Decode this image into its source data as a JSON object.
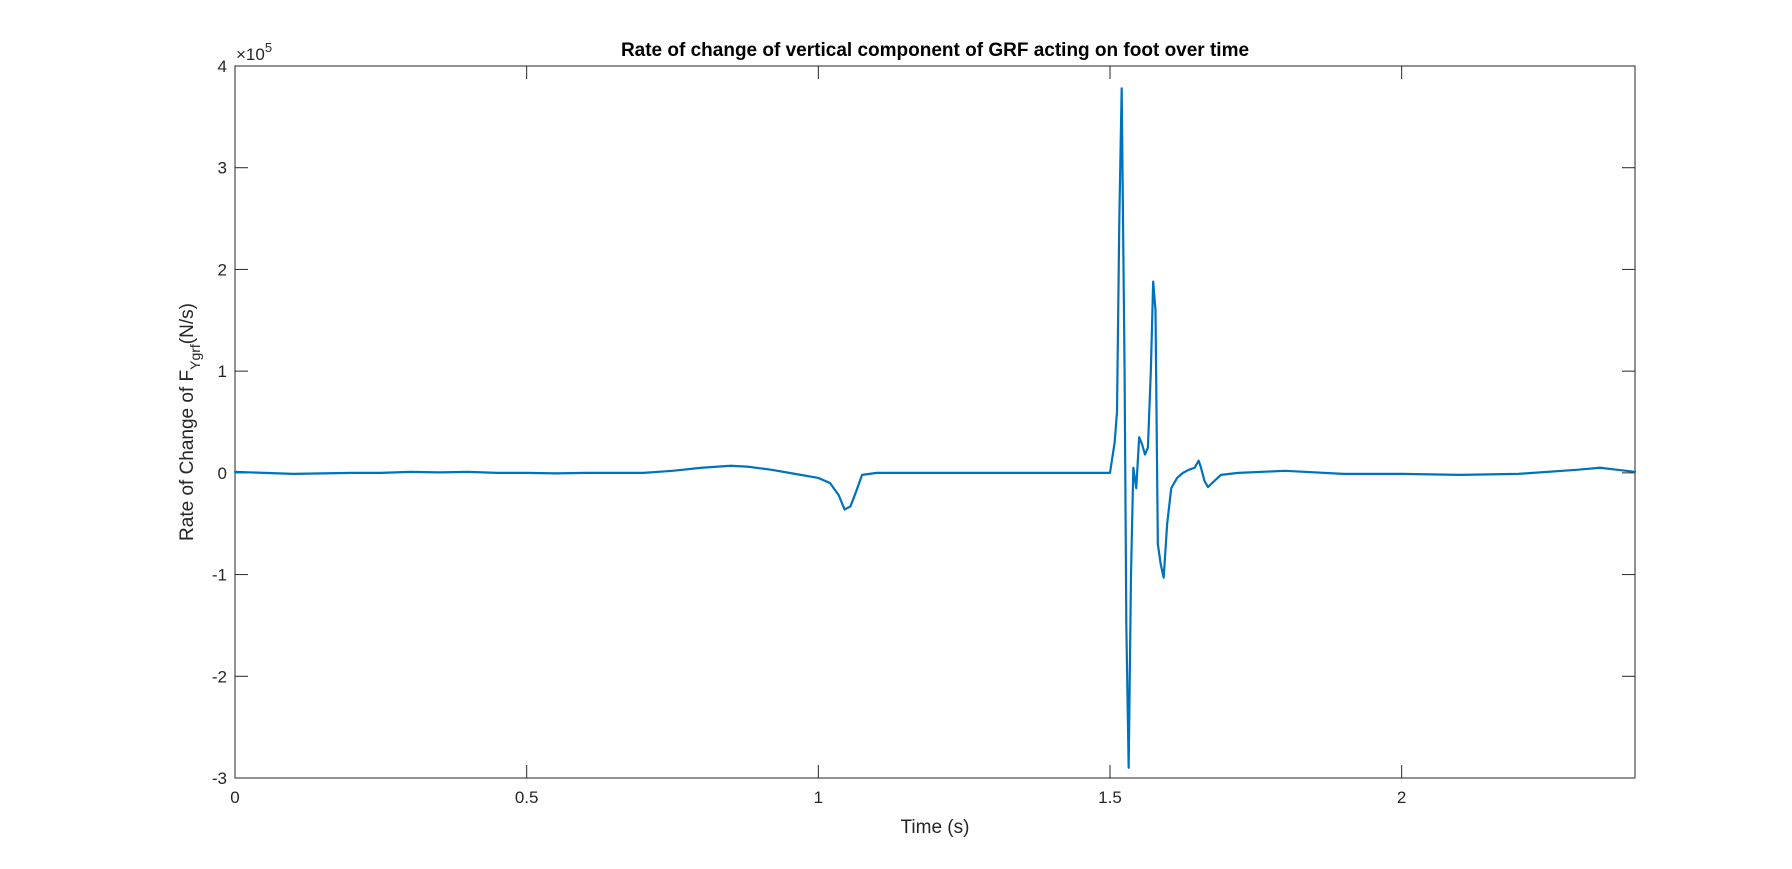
{
  "chart_data": {
    "type": "line",
    "title": "Rate of change of vertical component of GRF acting on foot over time",
    "xlabel": "Time (s)",
    "ylabel": {
      "prefix": "Rate of Change of F",
      "subscript": "Ygrf",
      "suffix": "(N/s)"
    },
    "y_exponent": {
      "base": "×10",
      "power": "5"
    },
    "xlim": [
      0,
      2.4
    ],
    "ylim": [
      -3,
      4
    ],
    "x_ticks": [
      0,
      0.5,
      1,
      1.5,
      2
    ],
    "x_tick_labels": [
      "0",
      "0.5",
      "1",
      "1.5",
      "2"
    ],
    "y_ticks": [
      -3,
      -2,
      -1,
      0,
      1,
      2,
      3,
      4
    ],
    "y_tick_labels": [
      "-3",
      "-2",
      "-1",
      "0",
      "1",
      "2",
      "3",
      "4"
    ],
    "grid": false,
    "box": true,
    "series_color": "#0072BD",
    "series": [
      {
        "x": [
          0,
          0.05,
          0.1,
          0.15,
          0.2,
          0.25,
          0.3,
          0.35,
          0.4,
          0.45,
          0.5,
          0.55,
          0.6,
          0.65,
          0.7,
          0.75,
          0.8,
          0.85,
          0.88,
          0.92,
          0.96,
          1.0,
          1.02,
          1.035,
          1.045,
          1.055,
          1.065,
          1.075,
          1.1,
          1.2,
          1.3,
          1.4,
          1.47,
          1.5,
          1.508,
          1.512,
          1.516,
          1.52,
          1.525,
          1.528,
          1.532,
          1.536,
          1.54,
          1.545,
          1.55,
          1.555,
          1.56,
          1.565,
          1.57,
          1.574,
          1.578,
          1.582,
          1.587,
          1.592,
          1.598,
          1.605,
          1.615,
          1.625,
          1.635,
          1.645,
          1.652,
          1.656,
          1.662,
          1.668,
          1.675,
          1.69,
          1.72,
          1.8,
          1.9,
          2.0,
          2.1,
          2.2,
          2.3,
          2.34,
          2.37,
          2.4
        ],
        "y": [
          0.01,
          0.0,
          -0.01,
          -0.005,
          0.0,
          0.0,
          0.01,
          0.005,
          0.01,
          0.0,
          0.0,
          -0.005,
          0.0,
          0.0,
          0.0,
          0.02,
          0.05,
          0.07,
          0.06,
          0.03,
          -0.01,
          -0.05,
          -0.1,
          -0.22,
          -0.36,
          -0.33,
          -0.18,
          -0.02,
          0.0,
          0.0,
          0.0,
          0.0,
          0.0,
          0.0,
          0.3,
          0.6,
          2.5,
          3.78,
          1.0,
          -1.5,
          -2.9,
          -1.0,
          0.05,
          -0.15,
          0.35,
          0.28,
          0.18,
          0.25,
          1.0,
          1.88,
          1.6,
          -0.7,
          -0.9,
          -1.03,
          -0.5,
          -0.15,
          -0.05,
          0.0,
          0.03,
          0.05,
          0.12,
          0.05,
          -0.08,
          -0.14,
          -0.1,
          -0.02,
          0.0,
          0.02,
          -0.01,
          -0.01,
          -0.02,
          -0.01,
          0.03,
          0.05,
          0.03,
          0.01
        ]
      }
    ]
  }
}
